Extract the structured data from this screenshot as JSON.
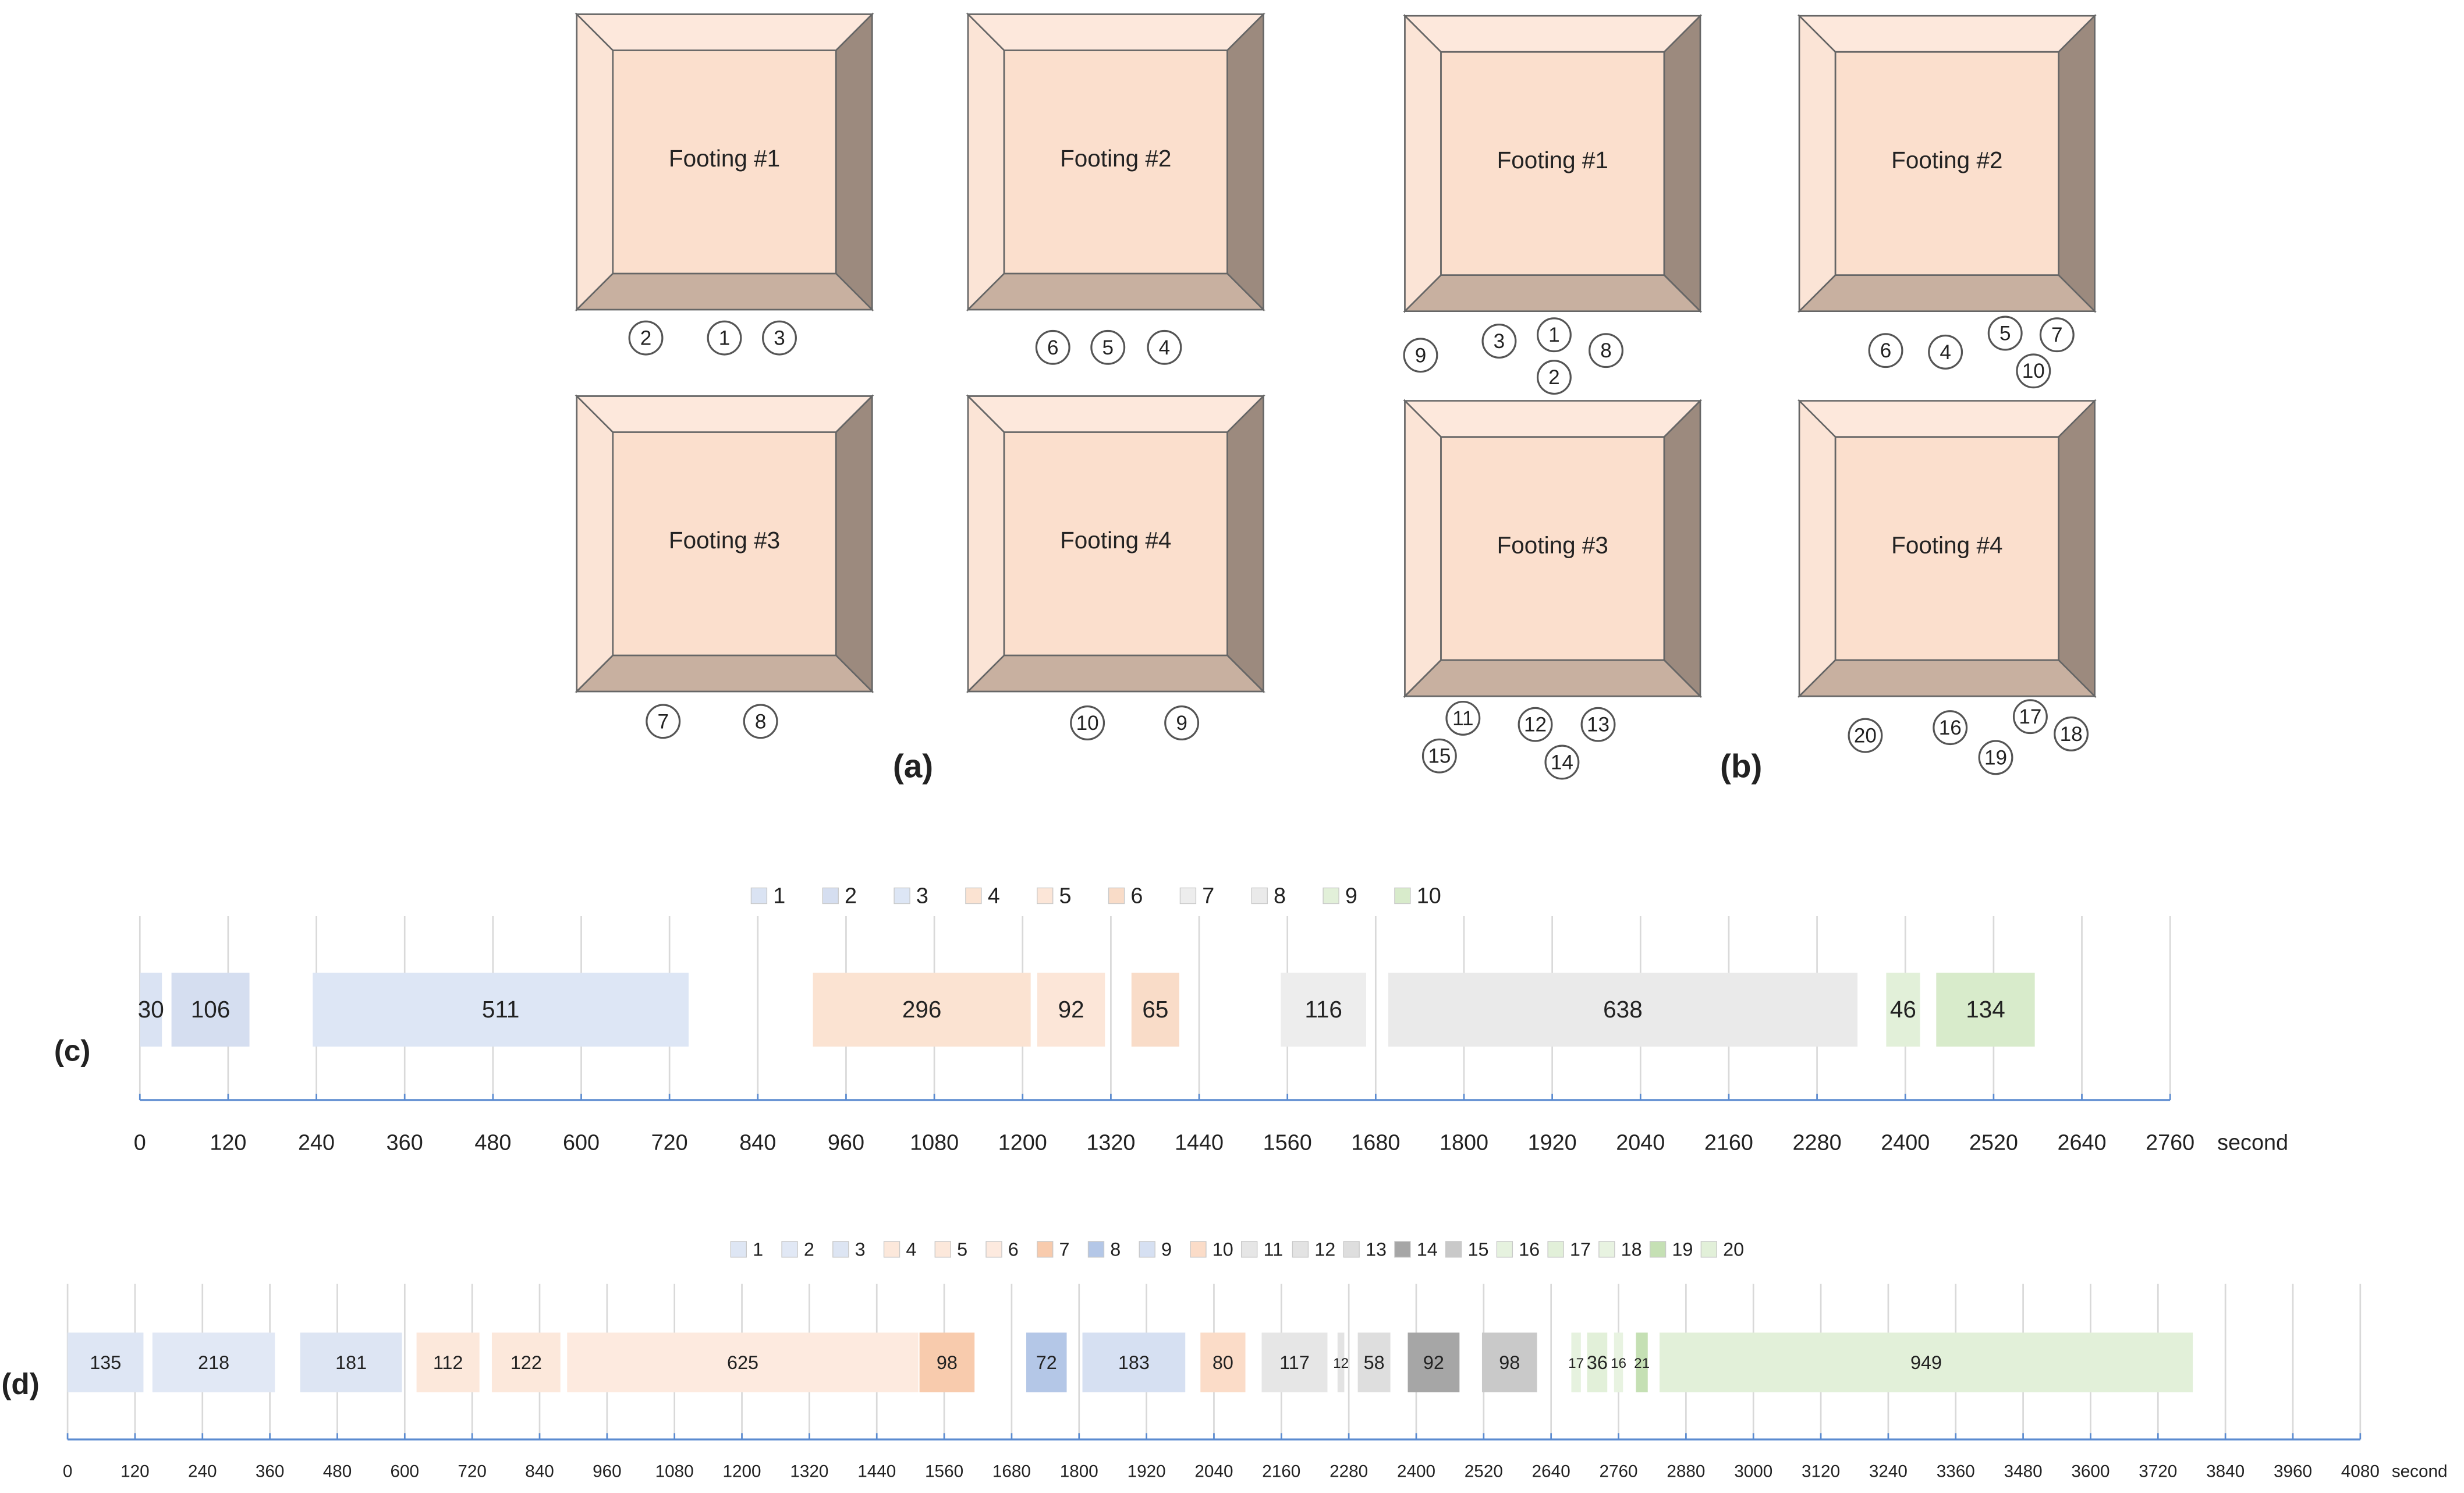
{
  "figure": {
    "panels": [
      {
        "label": "(a)",
        "footings": [
          "Footing #1",
          "Footing #2",
          "Footing #3",
          "Footing #4"
        ],
        "markers": [
          "1",
          "2",
          "3",
          "4",
          "5",
          "6",
          "7",
          "8",
          "9",
          "10"
        ]
      },
      {
        "label": "(b)",
        "footings": [
          "Footing #1",
          "Footing #2",
          "Footing #3",
          "Footing #4"
        ],
        "markers": [
          "1",
          "2",
          "3",
          "4",
          "5",
          "6",
          "7",
          "8",
          "9",
          "10",
          "11",
          "12",
          "13",
          "14",
          "15",
          "16",
          "17",
          "18",
          "19",
          "20"
        ]
      }
    ]
  },
  "chart_data": [
    {
      "type": "gantt",
      "panel_label": "(c)",
      "x_label": "second",
      "xlim": [
        0,
        2760
      ],
      "xticks": [
        0,
        120,
        240,
        360,
        480,
        600,
        720,
        840,
        960,
        1080,
        1200,
        1320,
        1440,
        1560,
        1680,
        1800,
        1920,
        2040,
        2160,
        2280,
        2400,
        2520,
        2640,
        2760
      ],
      "grid": true,
      "series": [
        {
          "name": "1",
          "color": "#dae3f3",
          "start": 0,
          "values": [
            30
          ]
        },
        {
          "name": "2",
          "color": "#d5def0",
          "start": 43,
          "values": [
            106
          ]
        },
        {
          "name": "3",
          "color": "#dde6f5",
          "start": 235,
          "values": [
            511
          ]
        },
        {
          "name": "4",
          "color": "#fbe3d2",
          "start": 915,
          "values": [
            296
          ]
        },
        {
          "name": "5",
          "color": "#fce6d8",
          "start": 1220,
          "values": [
            92
          ]
        },
        {
          "name": "6",
          "color": "#f9dcc8",
          "start": 1348,
          "values": [
            65
          ]
        },
        {
          "name": "7",
          "color": "#ededed",
          "start": 1551,
          "values": [
            116
          ]
        },
        {
          "name": "8",
          "color": "#eaeaea",
          "start": 1697,
          "values": [
            638
          ]
        },
        {
          "name": "9",
          "color": "#e2f0d9",
          "start": 2374,
          "values": [
            46
          ]
        },
        {
          "name": "10",
          "color": "#d8ebcb",
          "start": 2442,
          "values": [
            134
          ]
        }
      ]
    },
    {
      "type": "gantt",
      "panel_label": "(d)",
      "x_label": "second",
      "xlim": [
        0,
        4080
      ],
      "xticks": [
        0,
        120,
        240,
        360,
        480,
        600,
        720,
        840,
        960,
        1080,
        1200,
        1320,
        1440,
        1560,
        1680,
        1800,
        1920,
        2040,
        2160,
        2280,
        2400,
        2520,
        2640,
        2760,
        2880,
        3000,
        3120,
        3240,
        3360,
        3480,
        3600,
        3720,
        3840,
        3960,
        4080
      ],
      "grid": true,
      "series": [
        {
          "name": "1",
          "color": "#dee6f4",
          "start": 0,
          "values": [
            135
          ]
        },
        {
          "name": "2",
          "color": "#e1e8f5",
          "start": 151,
          "values": [
            218
          ]
        },
        {
          "name": "3",
          "color": "#dde5f3",
          "start": 414,
          "values": [
            181
          ]
        },
        {
          "name": "4",
          "color": "#fce8db",
          "start": 621,
          "values": [
            112
          ]
        },
        {
          "name": "5",
          "color": "#fce8db",
          "start": 755,
          "values": [
            122
          ]
        },
        {
          "name": "6",
          "color": "#fdeadf",
          "start": 889,
          "values": [
            625
          ]
        },
        {
          "name": "7",
          "color": "#f8cbad",
          "start": 1516,
          "values": [
            98
          ]
        },
        {
          "name": "8",
          "color": "#b4c7e7",
          "start": 1706,
          "values": [
            72
          ]
        },
        {
          "name": "9",
          "color": "#d6e0f2",
          "start": 1806,
          "values": [
            183
          ]
        },
        {
          "name": "10",
          "color": "#fbdcc8",
          "start": 2016,
          "values": [
            80
          ]
        },
        {
          "name": "11",
          "color": "#e6e6e6",
          "start": 2125,
          "values": [
            117
          ]
        },
        {
          "name": "12",
          "color": "#e3e3e3",
          "start": 2260,
          "values": [
            12
          ]
        },
        {
          "name": "13",
          "color": "#dedede",
          "start": 2296,
          "values": [
            58
          ]
        },
        {
          "name": "14",
          "color": "#a6a6a6",
          "start": 2385,
          "values": [
            92
          ]
        },
        {
          "name": "15",
          "color": "#c9c9c9",
          "start": 2517,
          "values": [
            98
          ]
        },
        {
          "name": "16",
          "color": "#e6f2df",
          "start": 2676,
          "values": [
            17
          ]
        },
        {
          "name": "17",
          "color": "#e2f0d9",
          "start": 2704,
          "values": [
            36
          ]
        },
        {
          "name": "18",
          "color": "#e8f3e1",
          "start": 2752,
          "values": [
            16
          ]
        },
        {
          "name": "19",
          "color": "#c5e0b4",
          "start": 2791,
          "values": [
            21
          ]
        },
        {
          "name": "20",
          "color": "#e2f0d9",
          "start": 2833,
          "values": [
            949
          ]
        }
      ]
    }
  ]
}
